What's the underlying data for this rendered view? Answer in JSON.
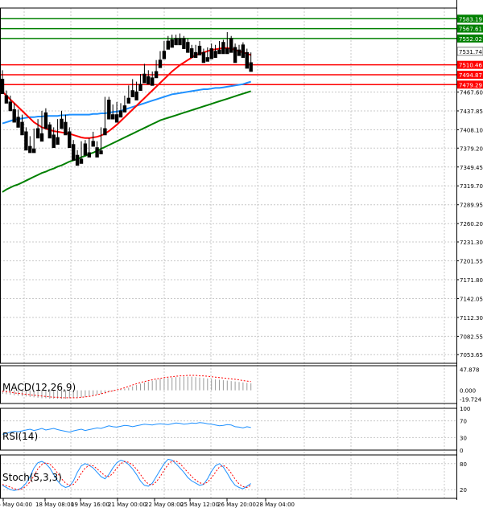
{
  "chart_data": {
    "type": "candlestick",
    "panels": [
      "price",
      "macd",
      "rsi",
      "stoch"
    ],
    "price_axis": {
      "ylim": [
        7040,
        7600
      ],
      "tick_labels": [
        7467.6,
        7437.85,
        7408.1,
        7379.2,
        7349.45,
        7319.7,
        7289.95,
        7260.2,
        7231.3,
        7201.55,
        7171.8,
        7142.05,
        7112.3,
        7082.55,
        7053.65
      ]
    },
    "x_tick_labels": [
      "15 May 04:00",
      "18 May 08:00",
      "19 May 16:00",
      "21 May 00:00",
      "22 May 08:00",
      "25 May 12:00",
      "26 May 20:00",
      "28 May 04:00"
    ],
    "levels": [
      {
        "label": "7583.19",
        "value": 7583.19,
        "color": "#008000"
      },
      {
        "label": "7567.61",
        "value": 7567.61,
        "color": "#008000"
      },
      {
        "label": "7552.02",
        "value": 7552.02,
        "color": "#008000"
      },
      {
        "label": "7531.74",
        "value": 7531.74,
        "color": "#000000"
      },
      {
        "label": "7510.46",
        "value": 7510.46,
        "color": "#ff0000"
      },
      {
        "label": "7494.87",
        "value": 7494.87,
        "color": "#ff0000"
      },
      {
        "label": "7479.29",
        "value": 7479.29,
        "color": "#ff0000"
      }
    ],
    "candles": [
      [
        7488,
        7502,
        7468,
        7465
      ],
      [
        7462,
        7470,
        7452,
        7450
      ],
      [
        7452,
        7462,
        7440,
        7438
      ],
      [
        7440,
        7450,
        7426,
        7420
      ],
      [
        7428,
        7440,
        7420,
        7412
      ],
      [
        7420,
        7432,
        7405,
        7400
      ],
      [
        7405,
        7412,
        7382,
        7376
      ],
      [
        7382,
        7398,
        7378,
        7372
      ],
      [
        7378,
        7410,
        7376,
        7372
      ],
      [
        7410,
        7425,
        7400,
        7395
      ],
      [
        7402,
        7438,
        7395,
        7390
      ],
      [
        7435,
        7442,
        7415,
        7410
      ],
      [
        7416,
        7420,
        7400,
        7395
      ],
      [
        7400,
        7412,
        7395,
        7380
      ],
      [
        7396,
        7425,
        7390,
        7385
      ],
      [
        7425,
        7438,
        7418,
        7410
      ],
      [
        7420,
        7432,
        7405,
        7400
      ],
      [
        7405,
        7412,
        7385,
        7380
      ],
      [
        7385,
        7392,
        7366,
        7360
      ],
      [
        7368,
        7376,
        7360,
        7352
      ],
      [
        7362,
        7390,
        7358,
        7355
      ],
      [
        7386,
        7392,
        7372,
        7368
      ],
      [
        7372,
        7395,
        7370,
        7365
      ],
      [
        7390,
        7405,
        7385,
        7382
      ],
      [
        7380,
        7390,
        7372,
        7365
      ],
      [
        7375,
        7412,
        7372,
        7370
      ],
      [
        7410,
        7460,
        7405,
        7400
      ],
      [
        7455,
        7460,
        7430,
        7425
      ],
      [
        7432,
        7448,
        7430,
        7425
      ],
      [
        7432,
        7452,
        7428,
        7420
      ],
      [
        7438,
        7450,
        7434,
        7428
      ],
      [
        7446,
        7462,
        7440,
        7436
      ],
      [
        7458,
        7478,
        7455,
        7450
      ],
      [
        7470,
        7488,
        7464,
        7460
      ],
      [
        7468,
        7484,
        7460,
        7455
      ],
      [
        7480,
        7496,
        7476,
        7470
      ],
      [
        7496,
        7512,
        7488,
        7482
      ],
      [
        7492,
        7502,
        7486,
        7480
      ],
      [
        7490,
        7500,
        7485,
        7478
      ],
      [
        7500,
        7518,
        7495,
        7490
      ],
      [
        7518,
        7532,
        7512,
        7506
      ],
      [
        7532,
        7548,
        7528,
        7520
      ],
      [
        7548,
        7556,
        7540,
        7535
      ],
      [
        7550,
        7558,
        7544,
        7538
      ],
      [
        7552,
        7558,
        7548,
        7542
      ],
      [
        7552,
        7560,
        7548,
        7542
      ],
      [
        7552,
        7556,
        7542,
        7536
      ],
      [
        7546,
        7552,
        7536,
        7530
      ],
      [
        7536,
        7542,
        7530,
        7522
      ],
      [
        7530,
        7542,
        7528,
        7522
      ],
      [
        7540,
        7548,
        7532,
        7526
      ],
      [
        7530,
        7536,
        7520,
        7514
      ],
      [
        7522,
        7538,
        7520,
        7516
      ],
      [
        7536,
        7544,
        7528,
        7520
      ],
      [
        7532,
        7542,
        7528,
        7522
      ],
      [
        7534,
        7548,
        7530,
        7528
      ],
      [
        7546,
        7550,
        7534,
        7528
      ],
      [
        7536,
        7562,
        7534,
        7528
      ],
      [
        7552,
        7556,
        7536,
        7530
      ],
      [
        7538,
        7544,
        7520,
        7514
      ],
      [
        7534,
        7542,
        7532,
        7525
      ],
      [
        7542,
        7546,
        7528,
        7522
      ],
      [
        7530,
        7536,
        7512,
        7505
      ],
      [
        7514,
        7530,
        7508,
        7500
      ]
    ],
    "ma_fast": [
      7468,
      7462,
      7456,
      7450,
      7444,
      7438,
      7432,
      7426,
      7420,
      7416,
      7412,
      7410,
      7408,
      7406,
      7405,
      7404,
      7403,
      7402,
      7400,
      7398,
      7396,
      7395,
      7395,
      7396,
      7397,
      7399,
      7402,
      7406,
      7411,
      7416,
      7422,
      7428,
      7434,
      7440,
      7446,
      7452,
      7458,
      7464,
      7470,
      7476,
      7482,
      7488,
      7494,
      7500,
      7505,
      7510,
      7514,
      7518,
      7522,
      7526,
      7528,
      7530,
      7532,
      7534,
      7535,
      7536,
      7537,
      7537,
      7536,
      7534,
      7532,
      7530,
      7528,
      7526
    ],
    "ma_mid": [
      7418,
      7420,
      7422,
      7424,
      7425,
      7426,
      7427,
      7428,
      7428,
      7429,
      7429,
      7430,
      7430,
      7430,
      7430,
      7431,
      7431,
      7432,
      7432,
      7432,
      7432,
      7432,
      7432,
      7433,
      7433,
      7434,
      7434,
      7435,
      7436,
      7437,
      7438,
      7440,
      7442,
      7444,
      7446,
      7448,
      7450,
      7452,
      7454,
      7456,
      7458,
      7460,
      7462,
      7464,
      7465,
      7466,
      7467,
      7468,
      7469,
      7470,
      7471,
      7472,
      7472,
      7473,
      7474,
      7474,
      7475,
      7476,
      7477,
      7478,
      7479,
      7480,
      7482,
      7484
    ],
    "ma_slow": [
      7310,
      7314,
      7317,
      7320,
      7322,
      7325,
      7328,
      7331,
      7334,
      7337,
      7340,
      7342,
      7345,
      7347,
      7350,
      7352,
      7355,
      7358,
      7360,
      7362,
      7365,
      7367,
      7370,
      7372,
      7375,
      7378,
      7381,
      7384,
      7387,
      7390,
      7393,
      7396,
      7399,
      7402,
      7405,
      7408,
      7411,
      7414,
      7417,
      7420,
      7423,
      7425,
      7427,
      7429,
      7431,
      7433,
      7435,
      7437,
      7439,
      7441,
      7443,
      7445,
      7447,
      7449,
      7451,
      7453,
      7455,
      7457,
      7459,
      7461,
      7463,
      7465,
      7467,
      7469
    ],
    "macd": {
      "label": "MACD(12,26,9)",
      "ylim": [
        -30,
        56
      ],
      "tick_labels": [
        47.878,
        0.0,
        -19.724
      ],
      "histogram": [
        -8,
        -9,
        -10,
        -11,
        -12,
        -13,
        -14,
        -15,
        -16,
        -17,
        -18,
        -18,
        -19,
        -19,
        -19,
        -19,
        -19,
        -18,
        -18,
        -17,
        -16,
        -15,
        -14,
        -12,
        -10,
        -8,
        -6,
        -4,
        -2,
        0,
        2,
        4,
        6,
        9,
        12,
        15,
        18,
        20,
        22,
        24,
        26,
        27,
        28,
        29,
        30,
        30,
        31,
        31,
        31,
        30,
        29,
        28,
        27,
        26,
        25,
        24,
        23,
        22,
        21,
        20,
        19,
        18,
        17,
        16
      ],
      "signal": [
        -2,
        -3,
        -4,
        -6,
        -7,
        -8,
        -9,
        -10,
        -11,
        -12,
        -13,
        -14,
        -15,
        -16,
        -16,
        -17,
        -17,
        -17,
        -17,
        -17,
        -16,
        -15,
        -14,
        -12,
        -10,
        -8,
        -6,
        -3,
        -1,
        1,
        3,
        6,
        9,
        12,
        15,
        18,
        20,
        22,
        24,
        26,
        27,
        29,
        30,
        31,
        32,
        33,
        33,
        34,
        34,
        34,
        33,
        33,
        32,
        31,
        30,
        29,
        28,
        27,
        26,
        25,
        24,
        22,
        21,
        20
      ]
    },
    "rsi": {
      "label": "RSI(14)",
      "ylim": [
        0,
        100
      ],
      "tick_labels": [
        100,
        70,
        30,
        0
      ],
      "values": [
        38,
        40,
        43,
        45,
        44,
        46,
        48,
        50,
        47,
        49,
        52,
        48,
        50,
        52,
        49,
        47,
        45,
        43,
        46,
        48,
        50,
        47,
        49,
        51,
        53,
        52,
        55,
        58,
        56,
        55,
        57,
        59,
        58,
        56,
        58,
        60,
        62,
        61,
        60,
        62,
        63,
        62,
        61,
        63,
        65,
        64,
        62,
        63,
        65,
        64,
        66,
        65,
        63,
        62,
        60,
        58,
        59,
        61,
        60,
        56,
        55,
        53,
        56,
        54
      ]
    },
    "stoch": {
      "label": "Stoch(5,3,3)",
      "ylim": [
        0,
        100
      ],
      "tick_labels": [
        80,
        20
      ],
      "k": [
        30,
        25,
        20,
        18,
        20,
        25,
        35,
        50,
        70,
        82,
        85,
        80,
        70,
        55,
        40,
        30,
        25,
        28,
        40,
        60,
        75,
        80,
        76,
        70,
        60,
        50,
        45,
        55,
        70,
        82,
        88,
        85,
        78,
        68,
        55,
        40,
        30,
        28,
        35,
        50,
        65,
        80,
        90,
        88,
        80,
        70,
        60,
        48,
        40,
        35,
        30,
        32,
        45,
        62,
        75,
        80,
        72,
        58,
        42,
        30,
        25,
        22,
        28,
        34
      ],
      "d": [
        32,
        29,
        26,
        22,
        20,
        22,
        28,
        38,
        52,
        68,
        78,
        82,
        79,
        70,
        58,
        45,
        35,
        30,
        32,
        42,
        58,
        70,
        76,
        75,
        68,
        60,
        52,
        50,
        57,
        70,
        80,
        85,
        83,
        77,
        67,
        55,
        42,
        33,
        31,
        38,
        50,
        65,
        78,
        86,
        86,
        80,
        70,
        60,
        50,
        42,
        36,
        33,
        37,
        47,
        60,
        72,
        76,
        70,
        58,
        44,
        33,
        27,
        25,
        30
      ]
    }
  }
}
